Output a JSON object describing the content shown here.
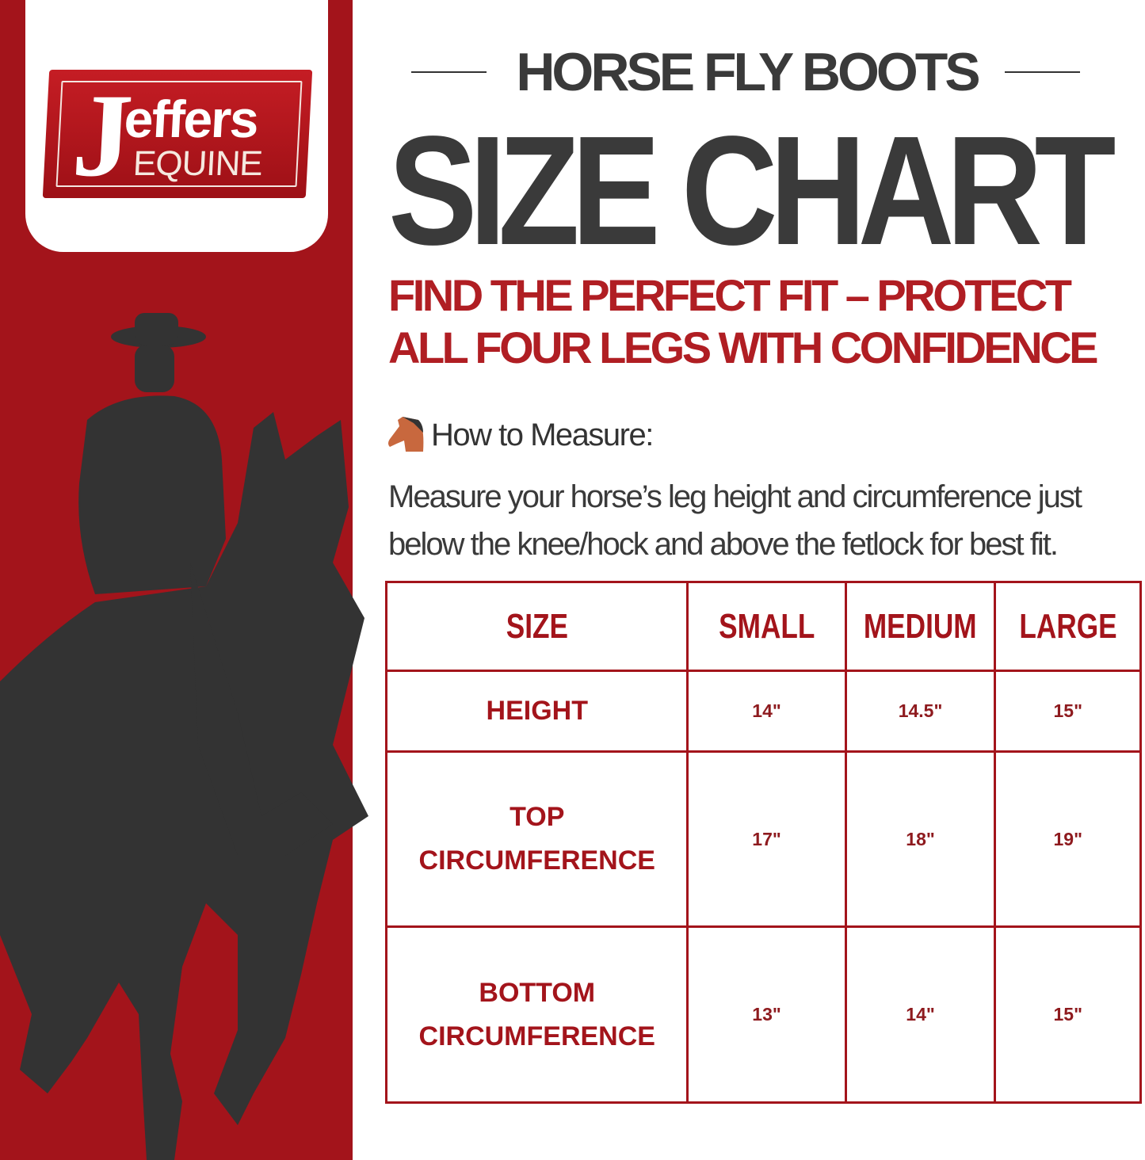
{
  "brand": {
    "logo_text": "Jeffers",
    "logo_subtext": "EQUINE",
    "accent": "#a3141b"
  },
  "header": {
    "top_title": "HORSE FLY BOOTS",
    "main_title": "SIZE CHART",
    "subtitle": "FIND THE PERFECT FIT – PROTECT ALL FOUR LEGS WITH CONFIDENCE"
  },
  "measure": {
    "icon": "horse-head-icon",
    "heading": "How to Measure:",
    "text": "Measure your horse’s leg height and circumference just below the knee/hock and above the fetlock for best fit."
  },
  "table": {
    "headers": [
      "SIZE",
      "SMALL",
      "MEDIUM",
      "LARGE"
    ],
    "rows": [
      {
        "label_lines": [
          "HEIGHT"
        ],
        "values": [
          "14\"",
          "14.5\"",
          "15\""
        ]
      },
      {
        "label_lines": [
          "TOP",
          "CIRCUMFERENCE"
        ],
        "values": [
          "17\"",
          "18\"",
          "19\""
        ]
      },
      {
        "label_lines": [
          "BOTTOM",
          "CIRCUMFERENCE"
        ],
        "values": [
          "13\"",
          "14\"",
          "15\""
        ]
      }
    ]
  }
}
